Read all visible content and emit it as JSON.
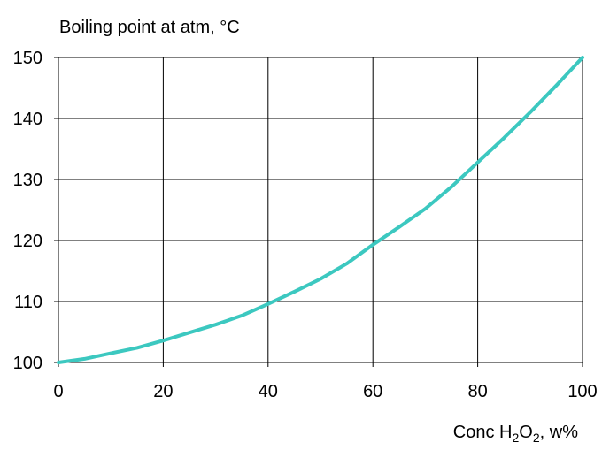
{
  "chart_data": {
    "type": "line",
    "title": "",
    "ylabel": "Boiling point at atm, °C",
    "xlabel": {
      "prefix": "Conc H",
      "sub1": "2",
      "mid": "O",
      "sub2": "2",
      "suffix": ", w%"
    },
    "xlim": [
      0,
      100
    ],
    "ylim": [
      100,
      150
    ],
    "x_ticks": [
      0,
      20,
      40,
      60,
      80,
      100
    ],
    "y_ticks": [
      100,
      110,
      120,
      130,
      140,
      150
    ],
    "grid": true,
    "legend": "none",
    "series": [
      {
        "color": "#3cc8c0",
        "x": [
          0,
          5,
          10,
          15,
          20,
          25,
          30,
          35,
          40,
          45,
          50,
          55,
          60,
          65,
          70,
          75,
          80,
          85,
          90,
          95,
          100
        ],
        "y": [
          100.0,
          100.6,
          101.5,
          102.4,
          103.6,
          104.9,
          106.2,
          107.7,
          109.6,
          111.6,
          113.7,
          116.2,
          119.3,
          122.2,
          125.2,
          128.8,
          132.8,
          136.8,
          141.0,
          145.4,
          150.0
        ]
      }
    ]
  }
}
